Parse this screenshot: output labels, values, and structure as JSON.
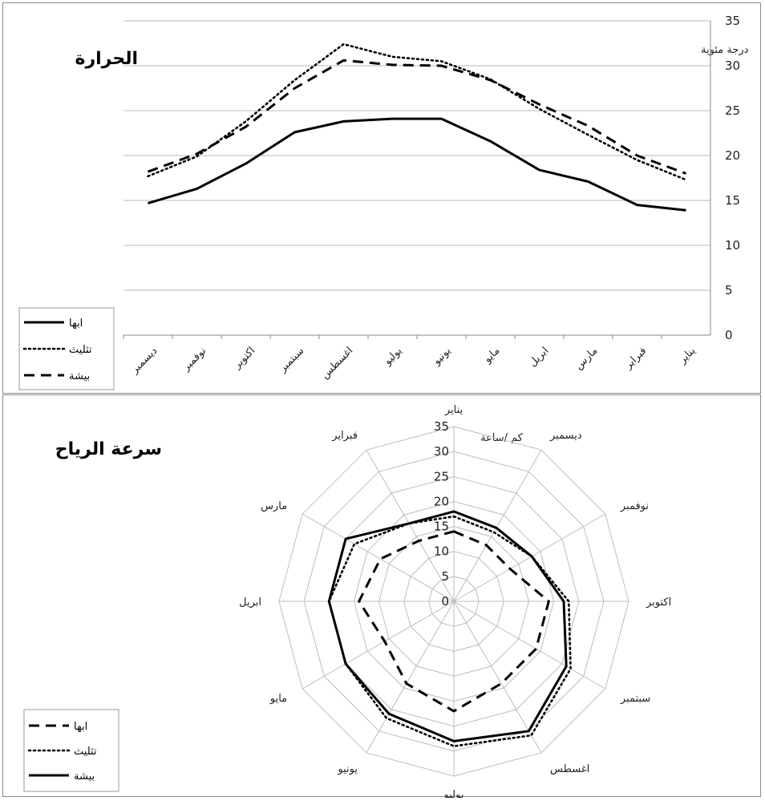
{
  "chart_data": [
    {
      "type": "line",
      "title": "الحرارة",
      "unit_label": "درجة مئوية",
      "categories": [
        "ديسمبر",
        "نوفمبر",
        "اكتوبر",
        "سبتمبر",
        "اغسطس",
        "يوليو",
        "يونيو",
        "مايو",
        "ابريل",
        "مارس",
        "فبراير",
        "يناير"
      ],
      "ylim": [
        0,
        35
      ],
      "yticks": [
        0,
        5,
        10,
        15,
        20,
        25,
        30,
        35
      ],
      "y_axis_side": "right",
      "grid": true,
      "legend_position": "bottom-left",
      "series": [
        {
          "name": "ابها",
          "style": "solid",
          "values": [
            14.7,
            16.3,
            19.1,
            22.6,
            23.8,
            24.1,
            24.1,
            21.6,
            18.4,
            17.1,
            14.5,
            13.9
          ]
        },
        {
          "name": "تثليث",
          "style": "dotted",
          "values": [
            17.7,
            19.9,
            23.8,
            28.4,
            32.4,
            31.0,
            30.5,
            28.5,
            25.2,
            22.3,
            19.5,
            17.3
          ]
        },
        {
          "name": "بيشة",
          "style": "dashed",
          "values": [
            18.2,
            20.2,
            23.2,
            27.5,
            30.6,
            30.1,
            30.0,
            28.4,
            25.7,
            23.3,
            20.0,
            18.0
          ]
        }
      ]
    },
    {
      "type": "radar",
      "title": "سرعة الرياح",
      "unit_label": "كم /ساعة",
      "categories": [
        "يناير",
        "ديسمبر",
        "نوفمبر",
        "اكتوبر",
        "سبتمبر",
        "اغسطس",
        "يوليو",
        "يونيو",
        "مايو",
        "ابريل",
        "مارس",
        "فبراير"
      ],
      "rlim": [
        0,
        35
      ],
      "rticks": [
        0,
        5,
        10,
        15,
        20,
        25,
        30,
        35
      ],
      "grid": true,
      "legend_position": "bottom-left",
      "series": [
        {
          "name": "ابها",
          "style": "dashed",
          "values": [
            14.0,
            13.0,
            13.0,
            19.0,
            19.0,
            19.0,
            22.0,
            19.0,
            16.0,
            19.0,
            17.0,
            14.0
          ]
        },
        {
          "name": "تثليث",
          "style": "dotted",
          "values": [
            17.0,
            16.0,
            18.0,
            23.0,
            27.0,
            31.0,
            29.0,
            27.0,
            25.0,
            25.0,
            23.0,
            18.0
          ]
        },
        {
          "name": "بيشة",
          "style": "solid",
          "values": [
            18.0,
            17.0,
            18.0,
            22.0,
            26.0,
            30.0,
            28.0,
            26.0,
            25.0,
            25.0,
            25.0,
            18.0
          ]
        }
      ]
    }
  ]
}
